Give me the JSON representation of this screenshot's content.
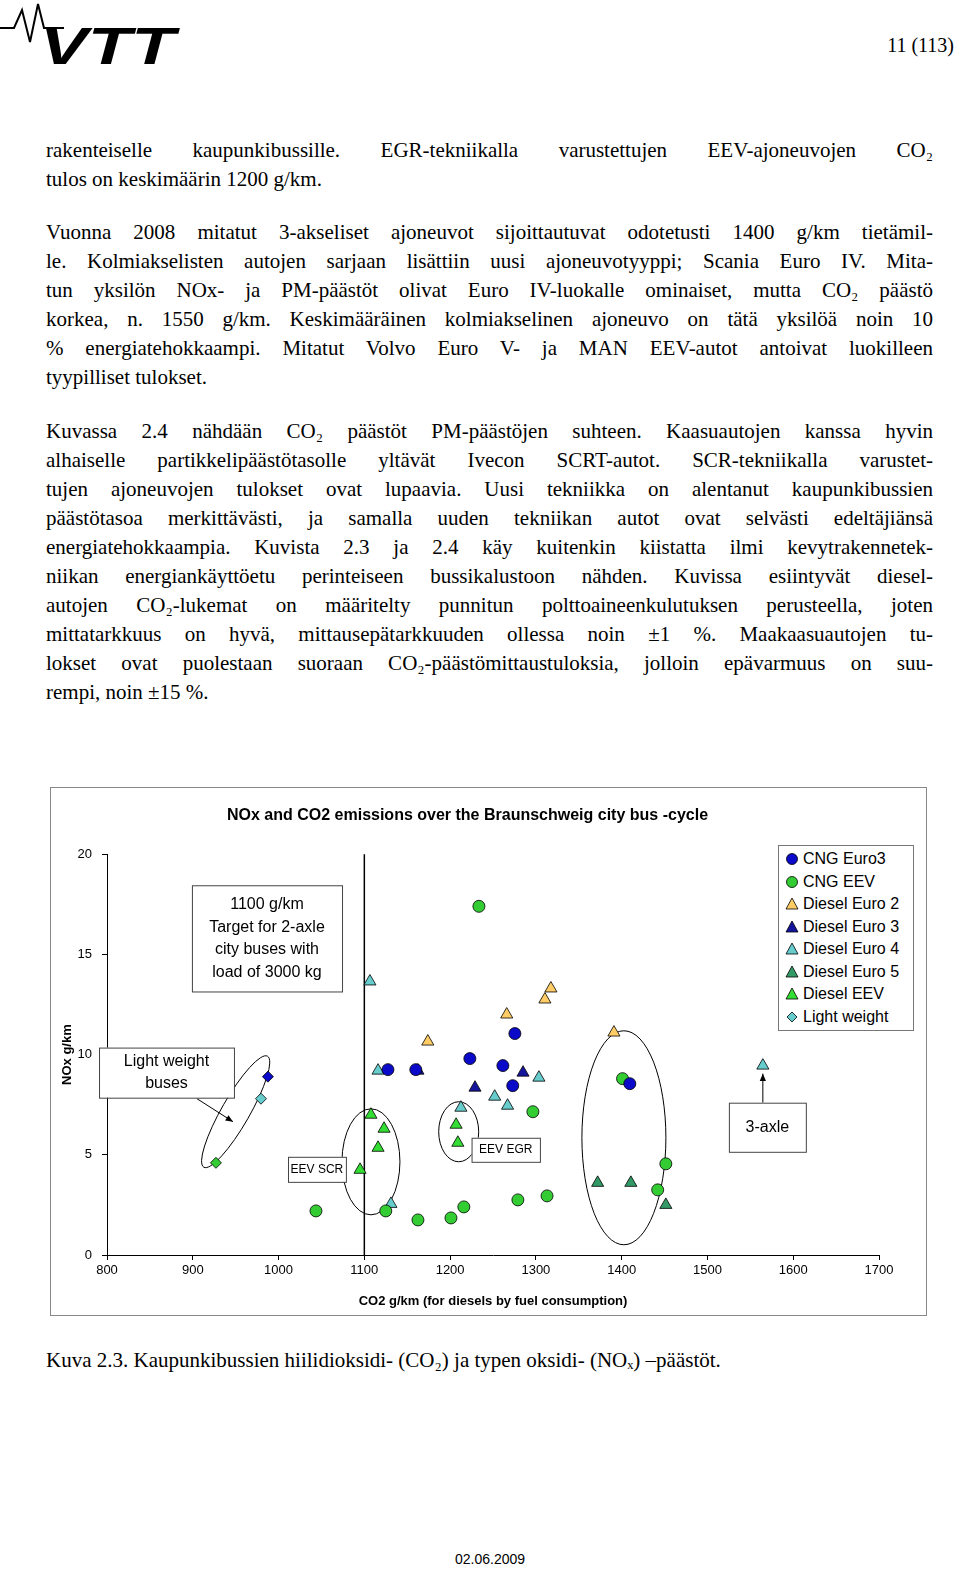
{
  "header": {
    "logo": "VTT",
    "page": "11 (113)"
  },
  "paragraphs": [
    [
      "rakenteiselle kaupunkibussille. EGR-tekniikalla varustettujen EEV-ajoneuvojen CO₂",
      "tulos on keskimäärin 1200 g/km."
    ],
    [
      "Vuonna 2008 mitatut 3-akseliset ajoneuvot sijoittautuvat odotetusti 1400 g/km tietämil-",
      "le. Kolmiakselisten autojen sarjaan lisättiin uusi ajoneuvotyyppi; Scania Euro IV. Mita-",
      "tun yksilön NOx- ja PM-päästöt olivat Euro IV-luokalle ominaiset, mutta CO₂ päästö",
      "korkea, n. 1550 g/km. Keskimääräinen kolmiakselinen ajoneuvo on tätä yksilöä noin 10",
      "% energiatehokkaampi. Mitatut Volvo Euro V- ja MAN EEV-autot antoivat luokilleen",
      "tyypilliset tulokset."
    ],
    [
      "Kuvassa 2.4 nähdään CO₂ päästöt PM-päästöjen suhteen. Kaasuautojen kanssa hyvin",
      "alhaiselle partikkelipäästötasolle yltävät Ivecon SCRT-autot. SCR-tekniikalla varustet-",
      "tujen ajoneuvojen tulokset ovat lupaavia. Uusi tekniikka on alentanut kaupunkibussien",
      "päästötasoa merkittävästi, ja samalla uuden tekniikan autot ovat selvästi edeltäjiänsä",
      "energiatehokkaampia. Kuvista 2.3 ja 2.4 käy kuitenkin kiistatta ilmi kevytrakennetek-",
      "niikan energiankäyttöetu perinteiseen bussikalustoon nähden. Kuvissa esiintyvät diesel-",
      "autojen CO₂-lukemat on määritelty punnitun polttoaineenkulutuksen perusteella, joten",
      "mittatarkkuus on hyvä, mittausepätarkkuuden ollessa noin ±1 %. Maakaasuautojen tu-",
      "lokset ovat puolestaan suoraan CO₂-päästömittaustuloksia, jolloin epävarmuus on suu-",
      "rempi, noin ±15 %."
    ]
  ],
  "chart_data": {
    "type": "scatter",
    "title": "NOx and CO2 emissions over the Braunschweig city bus -cycle",
    "x_label": "CO2 g/km (for diesels by fuel consumption)",
    "y_label": "NOx g/km",
    "xlim": [
      800,
      1700
    ],
    "xticks": [
      800,
      900,
      1000,
      1100,
      1200,
      1300,
      1400,
      1500,
      1600,
      1700
    ],
    "ylim": [
      0,
      20
    ],
    "yticks": [
      0,
      5,
      10,
      15,
      20
    ],
    "grid": false,
    "legend": "upper right",
    "series": [
      {
        "name": "CNG Euro3",
        "color": "#0a0ac8",
        "marker": "circle",
        "x": [
          1127.5,
          1160,
          1223,
          1261.5,
          1273,
          1275.5,
          1409.5
        ],
        "values": [
          9.25,
          9.25,
          9.8,
          9.45,
          8.45,
          11.05,
          8.55
        ]
      },
      {
        "name": "CNG EEV",
        "color": "#33cc33",
        "marker": "circle",
        "x": [
          1233.6,
          1043.6,
          1125,
          1162.5,
          1201,
          1216,
          1296.5,
          1279,
          1401,
          1451.5,
          1442,
          1313
        ],
        "values": [
          17.4,
          2.2,
          2.2,
          1.75,
          1.85,
          2.4,
          7.15,
          2.75,
          8.8,
          4.55,
          3.25,
          2.95
        ]
      },
      {
        "name": "Diesel Euro 2",
        "color": "#ffcc66",
        "marker": "triangle",
        "x": [
          1174,
          1266,
          1310.5,
          1317.5,
          1391
        ],
        "values": [
          10.65,
          12.0,
          12.75,
          13.3,
          11.1
        ]
      },
      {
        "name": "Diesel Euro 3",
        "color": "#14149c",
        "marker": "triangle",
        "x": [
          1162.5,
          1229,
          1285
        ],
        "values": [
          9.2,
          8.35,
          9.1
        ]
      },
      {
        "name": "Diesel Euro 4",
        "color": "#66cccc",
        "marker": "triangle",
        "x": [
          1106.5,
          1116,
          1212.6,
          1252,
          1267,
          1303.5,
          1131,
          1564.6
        ],
        "values": [
          13.65,
          9.2,
          7.35,
          7.9,
          7.45,
          8.85,
          2.55,
          9.45
        ]
      },
      {
        "name": "Diesel Euro 5",
        "color": "#339966",
        "marker": "triangle",
        "x": [
          1372,
          1410.7,
          1451.5
        ],
        "values": [
          3.6,
          3.6,
          2.5
        ]
      },
      {
        "name": "Diesel EEV",
        "color": "#33dd33",
        "marker": "triangle",
        "x": [
          1107.7,
          1123,
          1116,
          1095,
          1207,
          1209
        ],
        "values": [
          7.0,
          6.3,
          5.35,
          4.25,
          6.5,
          5.6
        ]
      },
      {
        "name": "Light weight",
        "color": "#66cccc",
        "marker": "diamond",
        "colors": [
          "#0a0ac8",
          "#66cccc",
          "#33cc33"
        ],
        "x": [
          987.6,
          979.5,
          927
        ],
        "values": [
          8.9,
          7.8,
          4.6
        ]
      }
    ],
    "reference_line": {
      "x": 1100
    },
    "annotations": [
      {
        "lines": [
          "1100 g/km",
          "Target for 2-axle",
          "city buses with",
          "load of 3000 kg"
        ]
      },
      {
        "lines": [
          "Light weight",
          "buses"
        ]
      },
      {
        "lines": [
          "EEV SCR"
        ]
      },
      {
        "lines": [
          "EEV EGR"
        ]
      },
      {
        "lines": [
          "3-axle"
        ]
      }
    ]
  },
  "caption": "Kuva 2.3. Kaupunkibussien hiilidioksidi- (CO₂) ja typen oksidi- (NOₓ) –päästöt.",
  "footer": "02.06.2009"
}
